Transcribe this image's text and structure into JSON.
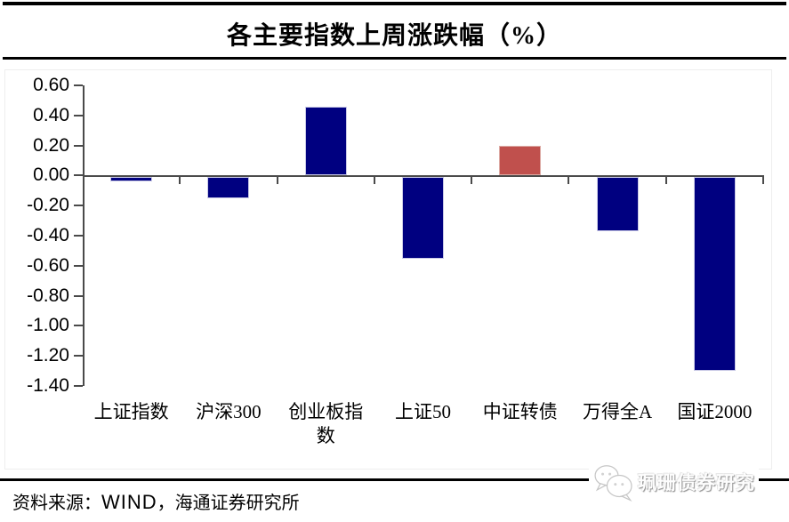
{
  "title": "各主要指数上周涨跌幅（%）",
  "chart_data": {
    "type": "bar",
    "title": "各主要指数上周涨跌幅（%）",
    "categories": [
      "上证指数",
      "沪深300",
      "创业板指数",
      "上证50",
      "中证转债",
      "万得全A",
      "国证2000"
    ],
    "values": [
      -0.03,
      -0.14,
      0.46,
      -0.54,
      0.2,
      -0.36,
      -1.29
    ],
    "bar_colors": [
      "#000080",
      "#000080",
      "#000080",
      "#000080",
      "#C0504D",
      "#000080",
      "#000080"
    ],
    "highlight_color": "#C0504D",
    "ylim": [
      -1.4,
      0.6
    ],
    "ytick_labels": [
      "0.60",
      "0.40",
      "0.20",
      "0.00",
      "-0.20",
      "-0.40",
      "-0.60",
      "-0.80",
      "-1.00",
      "-1.20",
      "-1.40"
    ],
    "xlabel": "",
    "ylabel": "",
    "grid": false,
    "legend": null
  },
  "footer": {
    "source_prefix": "资料来源：",
    "source_wind": "WIND",
    "source_suffix": "，海通证券研究所"
  },
  "watermark": {
    "icon": "wechat-icon",
    "text": "珮珊债券研究"
  },
  "colors": {
    "bar_blue": "#000080",
    "bar_red": "#C0504D",
    "axis": "#4a4a4a",
    "rule": "#000000"
  }
}
